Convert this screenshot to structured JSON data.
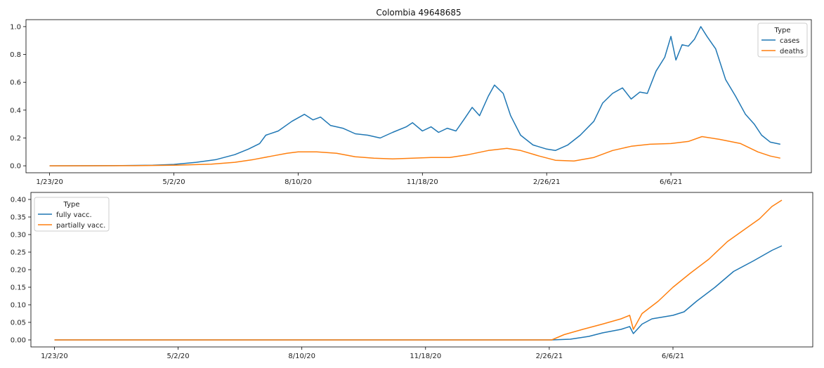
{
  "chart_data": [
    {
      "type": "line",
      "title": "Colombia 49648685",
      "xlabel": "",
      "ylabel": "",
      "x_tick_labels": [
        "1/23/20",
        "5/2/20",
        "8/10/20",
        "11/18/20",
        "2/26/21",
        "6/6/21"
      ],
      "y_tick_labels": [
        "0.0",
        "0.2",
        "0.4",
        "0.6",
        "0.8",
        "1.0"
      ],
      "xlim": [
        "2020-01-04",
        "2021-09-27"
      ],
      "ylim": [
        -0.05,
        1.05
      ],
      "grid": false,
      "legend": {
        "title": "Type",
        "placement": "top-right"
      },
      "series": [
        {
          "name": "cases",
          "color": "#1f77b4",
          "points": [
            [
              "2020-01-23",
              0.0
            ],
            [
              "2020-03-15",
              0.001
            ],
            [
              "2020-04-15",
              0.004
            ],
            [
              "2020-05-02",
              0.01
            ],
            [
              "2020-05-20",
              0.025
            ],
            [
              "2020-06-05",
              0.045
            ],
            [
              "2020-06-20",
              0.08
            ],
            [
              "2020-07-01",
              0.12
            ],
            [
              "2020-07-10",
              0.16
            ],
            [
              "2020-07-15",
              0.22
            ],
            [
              "2020-07-25",
              0.25
            ],
            [
              "2020-08-05",
              0.32
            ],
            [
              "2020-08-15",
              0.37
            ],
            [
              "2020-08-22",
              0.33
            ],
            [
              "2020-08-28",
              0.35
            ],
            [
              "2020-09-05",
              0.29
            ],
            [
              "2020-09-15",
              0.27
            ],
            [
              "2020-09-25",
              0.23
            ],
            [
              "2020-10-05",
              0.22
            ],
            [
              "2020-10-15",
              0.2
            ],
            [
              "2020-10-25",
              0.24
            ],
            [
              "2020-11-05",
              0.28
            ],
            [
              "2020-11-10",
              0.31
            ],
            [
              "2020-11-18",
              0.25
            ],
            [
              "2020-11-25",
              0.28
            ],
            [
              "2020-12-01",
              0.24
            ],
            [
              "2020-12-08",
              0.27
            ],
            [
              "2020-12-15",
              0.25
            ],
            [
              "2020-12-22",
              0.34
            ],
            [
              "2020-12-28",
              0.42
            ],
            [
              "2021-01-03",
              0.36
            ],
            [
              "2021-01-10",
              0.5
            ],
            [
              "2021-01-15",
              0.58
            ],
            [
              "2021-01-22",
              0.52
            ],
            [
              "2021-01-28",
              0.36
            ],
            [
              "2021-02-05",
              0.22
            ],
            [
              "2021-02-15",
              0.15
            ],
            [
              "2021-02-26",
              0.12
            ],
            [
              "2021-03-05",
              0.11
            ],
            [
              "2021-03-15",
              0.15
            ],
            [
              "2021-03-25",
              0.22
            ],
            [
              "2021-04-05",
              0.32
            ],
            [
              "2021-04-12",
              0.45
            ],
            [
              "2021-04-20",
              0.52
            ],
            [
              "2021-04-28",
              0.56
            ],
            [
              "2021-05-05",
              0.48
            ],
            [
              "2021-05-12",
              0.53
            ],
            [
              "2021-05-18",
              0.52
            ],
            [
              "2021-05-25",
              0.68
            ],
            [
              "2021-06-01",
              0.78
            ],
            [
              "2021-06-06",
              0.93
            ],
            [
              "2021-06-10",
              0.76
            ],
            [
              "2021-06-15",
              0.87
            ],
            [
              "2021-06-20",
              0.86
            ],
            [
              "2021-06-25",
              0.91
            ],
            [
              "2021-06-30",
              1.0
            ],
            [
              "2021-07-05",
              0.93
            ],
            [
              "2021-07-12",
              0.84
            ],
            [
              "2021-07-20",
              0.62
            ],
            [
              "2021-07-28",
              0.5
            ],
            [
              "2021-08-05",
              0.37
            ],
            [
              "2021-08-12",
              0.3
            ],
            [
              "2021-08-18",
              0.22
            ],
            [
              "2021-08-25",
              0.17
            ],
            [
              "2021-09-02",
              0.155
            ]
          ]
        },
        {
          "name": "deaths",
          "color": "#ff7f0e",
          "points": [
            [
              "2020-01-23",
              0.0
            ],
            [
              "2020-04-01",
              0.001
            ],
            [
              "2020-05-02",
              0.004
            ],
            [
              "2020-06-01",
              0.012
            ],
            [
              "2020-06-20",
              0.025
            ],
            [
              "2020-07-05",
              0.045
            ],
            [
              "2020-07-20",
              0.07
            ],
            [
              "2020-08-01",
              0.09
            ],
            [
              "2020-08-10",
              0.1
            ],
            [
              "2020-08-25",
              0.1
            ],
            [
              "2020-09-10",
              0.09
            ],
            [
              "2020-09-25",
              0.065
            ],
            [
              "2020-10-10",
              0.055
            ],
            [
              "2020-10-25",
              0.05
            ],
            [
              "2020-11-10",
              0.055
            ],
            [
              "2020-11-25",
              0.06
            ],
            [
              "2020-12-10",
              0.06
            ],
            [
              "2020-12-25",
              0.08
            ],
            [
              "2021-01-10",
              0.11
            ],
            [
              "2021-01-25",
              0.125
            ],
            [
              "2021-02-05",
              0.11
            ],
            [
              "2021-02-20",
              0.07
            ],
            [
              "2021-03-05",
              0.04
            ],
            [
              "2021-03-20",
              0.035
            ],
            [
              "2021-04-05",
              0.06
            ],
            [
              "2021-04-20",
              0.11
            ],
            [
              "2021-05-05",
              0.14
            ],
            [
              "2021-05-20",
              0.155
            ],
            [
              "2021-06-06",
              0.16
            ],
            [
              "2021-06-20",
              0.175
            ],
            [
              "2021-07-01",
              0.21
            ],
            [
              "2021-07-15",
              0.19
            ],
            [
              "2021-08-01",
              0.16
            ],
            [
              "2021-08-15",
              0.1
            ],
            [
              "2021-08-25",
              0.07
            ],
            [
              "2021-09-02",
              0.055
            ]
          ]
        }
      ]
    },
    {
      "type": "line",
      "title": "",
      "xlabel": "",
      "ylabel": "",
      "x_tick_labels": [
        "1/23/20",
        "5/2/20",
        "8/10/20",
        "11/18/20",
        "2/26/21",
        "6/6/21"
      ],
      "y_tick_labels": [
        "0.00",
        "0.05",
        "0.10",
        "0.15",
        "0.20",
        "0.25",
        "0.30",
        "0.35",
        "0.40"
      ],
      "xlim": [
        "2020-01-04",
        "2021-09-27"
      ],
      "ylim": [
        -0.02,
        0.42
      ],
      "grid": false,
      "legend": {
        "title": "Type",
        "placement": "top-left"
      },
      "series": [
        {
          "name": "fully vacc.",
          "color": "#1f77b4",
          "points": [
            [
              "2020-01-23",
              0.0
            ],
            [
              "2021-02-28",
              0.0
            ],
            [
              "2021-03-15",
              0.002
            ],
            [
              "2021-03-30",
              0.01
            ],
            [
              "2021-04-10",
              0.02
            ],
            [
              "2021-04-25",
              0.03
            ],
            [
              "2021-05-02",
              0.038
            ],
            [
              "2021-05-05",
              0.018
            ],
            [
              "2021-05-12",
              0.045
            ],
            [
              "2021-05-20",
              0.06
            ],
            [
              "2021-06-06",
              0.07
            ],
            [
              "2021-06-15",
              0.08
            ],
            [
              "2021-06-25",
              0.11
            ],
            [
              "2021-07-10",
              0.15
            ],
            [
              "2021-07-25",
              0.195
            ],
            [
              "2021-08-10",
              0.225
            ],
            [
              "2021-08-25",
              0.255
            ],
            [
              "2021-09-02",
              0.268
            ]
          ]
        },
        {
          "name": "partially vacc.",
          "color": "#ff7f0e",
          "points": [
            [
              "2020-01-23",
              0.0
            ],
            [
              "2021-02-28",
              0.0
            ],
            [
              "2021-03-10",
              0.015
            ],
            [
              "2021-03-25",
              0.03
            ],
            [
              "2021-04-10",
              0.045
            ],
            [
              "2021-04-25",
              0.06
            ],
            [
              "2021-05-02",
              0.07
            ],
            [
              "2021-05-05",
              0.03
            ],
            [
              "2021-05-12",
              0.075
            ],
            [
              "2021-05-25",
              0.11
            ],
            [
              "2021-06-06",
              0.15
            ],
            [
              "2021-06-20",
              0.19
            ],
            [
              "2021-07-05",
              0.23
            ],
            [
              "2021-07-20",
              0.28
            ],
            [
              "2021-08-01",
              0.31
            ],
            [
              "2021-08-15",
              0.345
            ],
            [
              "2021-08-25",
              0.38
            ],
            [
              "2021-09-02",
              0.398
            ]
          ]
        }
      ]
    }
  ]
}
